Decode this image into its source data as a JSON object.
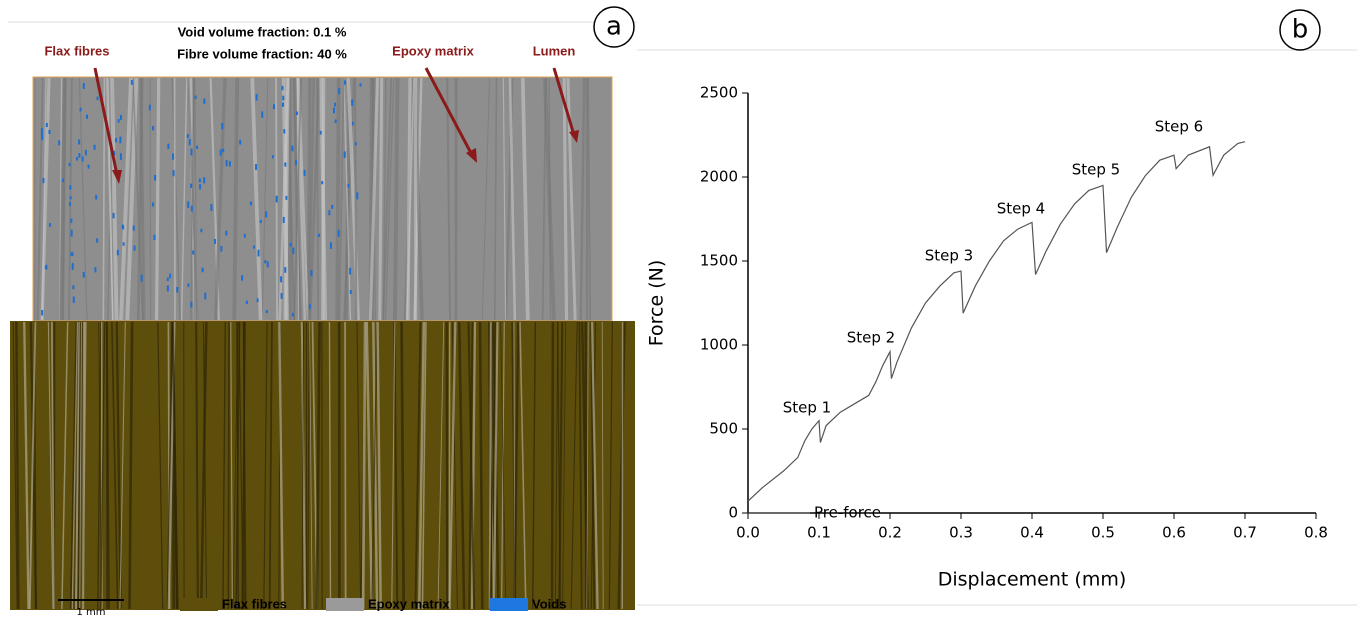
{
  "panel_a": {
    "label": "a",
    "void_fraction": "Void volume fraction: 0.1 %",
    "fibre_fraction": "Fibre volume fraction: 40 %",
    "callouts": [
      "Flax fibres",
      "Epoxy matrix",
      "Lumen"
    ],
    "legend": [
      {
        "name": "Flax fibres",
        "color": "#5e4e0c"
      },
      {
        "name": "Epoxy matrix",
        "color": "#9a9a9a"
      },
      {
        "name": "Voids",
        "color": "#1f78e0"
      }
    ],
    "scale_bar": "1 mm"
  },
  "chart_data": {
    "type": "line",
    "panel_label": "b",
    "x_label": "Displacement (mm)",
    "y_label": "Force (N)",
    "xlim": [
      0,
      0.8
    ],
    "ylim": [
      0,
      2500
    ],
    "xticks": [
      {
        "value": 0,
        "label": "0.0"
      },
      0.1,
      0.2,
      0.3,
      0.4,
      0.5,
      0.6,
      0.7,
      0.8
    ],
    "yticks": [
      0,
      500,
      1000,
      1500,
      2000,
      2500
    ],
    "series": [
      {
        "color": "#555555",
        "x": [
          0,
          0.02,
          0.05,
          0.07,
          0.08,
          0.09,
          0.1,
          0.102,
          0.11,
          0.13,
          0.15,
          0.17,
          0.18,
          0.19,
          0.2,
          0.202,
          0.21,
          0.23,
          0.25,
          0.27,
          0.29,
          0.3,
          0.303,
          0.32,
          0.34,
          0.36,
          0.38,
          0.4,
          0.405,
          0.42,
          0.44,
          0.46,
          0.48,
          0.5,
          0.505,
          0.52,
          0.54,
          0.56,
          0.58,
          0.6,
          0.603,
          0.62,
          0.65,
          0.655,
          0.67,
          0.69,
          0.7
        ],
        "values": [
          70,
          150,
          250,
          330,
          430,
          500,
          550,
          420,
          520,
          600,
          650,
          700,
          780,
          880,
          960,
          800,
          900,
          1100,
          1250,
          1350,
          1430,
          1440,
          1190,
          1350,
          1500,
          1620,
          1690,
          1730,
          1420,
          1560,
          1720,
          1840,
          1920,
          1950,
          1550,
          1700,
          1880,
          2010,
          2100,
          2130,
          2050,
          2130,
          2180,
          2010,
          2130,
          2200,
          2210
        ]
      }
    ],
    "annotations": [
      "Step 1",
      "Step 2",
      "Step 3",
      "Step 4",
      "Step 5",
      "Step 6",
      "Pre-force"
    ]
  }
}
